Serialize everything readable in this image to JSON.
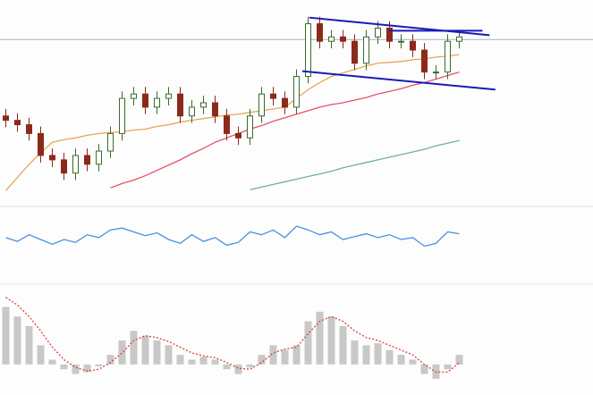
{
  "chart_data": [
    {
      "type": "candlestick",
      "x": [
        0,
        1,
        2,
        3,
        4,
        5,
        6,
        7,
        8,
        9,
        10,
        11,
        12,
        13,
        14,
        15,
        16,
        17,
        18,
        19,
        20,
        21,
        22,
        23,
        24,
        25,
        26,
        27,
        28,
        29,
        30,
        31,
        32,
        33,
        34,
        35,
        36,
        37,
        38,
        39
      ],
      "open": [
        100,
        95,
        90,
        80,
        55,
        50,
        35,
        55,
        45,
        60,
        80,
        120,
        125,
        110,
        120,
        125,
        100,
        110,
        115,
        100,
        80,
        75,
        100,
        125,
        120,
        110,
        145,
        205,
        185,
        190,
        185,
        160,
        190,
        200,
        185,
        185,
        175,
        150,
        150,
        185
      ],
      "high": [
        108,
        103,
        98,
        88,
        63,
        58,
        63,
        63,
        68,
        88,
        128,
        133,
        133,
        128,
        133,
        133,
        118,
        123,
        123,
        108,
        88,
        108,
        133,
        133,
        128,
        153,
        213,
        213,
        198,
        198,
        193,
        198,
        208,
        208,
        193,
        193,
        183,
        158,
        193,
        198
      ],
      "low": [
        87,
        82,
        72,
        47,
        42,
        27,
        27,
        37,
        37,
        52,
        72,
        112,
        102,
        102,
        112,
        92,
        92,
        102,
        92,
        72,
        67,
        67,
        92,
        112,
        102,
        102,
        137,
        177,
        177,
        177,
        152,
        152,
        182,
        177,
        177,
        167,
        142,
        142,
        142,
        177
      ],
      "close": [
        95,
        90,
        80,
        55,
        50,
        35,
        55,
        45,
        60,
        80,
        120,
        125,
        110,
        120,
        125,
        100,
        110,
        115,
        100,
        80,
        75,
        100,
        125,
        120,
        110,
        145,
        205,
        185,
        190,
        185,
        160,
        190,
        200,
        185,
        185,
        175,
        150,
        150,
        185,
        190
      ],
      "up_color": "#3a6b2a",
      "down_color": "#8b2a1a",
      "series": [
        {
          "color": "#e8a657",
          "values": [
            15,
            30,
            45,
            58,
            70,
            73,
            75,
            78,
            80,
            81,
            82,
            84,
            85,
            88,
            90,
            93,
            95,
            97,
            99,
            101,
            102,
            104,
            106,
            108,
            110,
            120,
            130,
            138,
            145,
            149,
            153,
            157,
            160,
            161,
            162,
            164,
            165,
            167,
            168,
            170
          ]
        },
        {
          "color": "#e8506a",
          "values": [
            null,
            null,
            null,
            null,
            null,
            null,
            null,
            null,
            null,
            18,
            23,
            27,
            32,
            38,
            44,
            50,
            57,
            63,
            70,
            75,
            80,
            85,
            89,
            94,
            98,
            102,
            106,
            110,
            113,
            115,
            118,
            121,
            125,
            128,
            131,
            135,
            138,
            142,
            146,
            150
          ]
        },
        {
          "color": "#6fb0a0",
          "values": [
            null,
            null,
            null,
            null,
            null,
            null,
            null,
            null,
            null,
            null,
            null,
            null,
            null,
            null,
            null,
            null,
            null,
            null,
            null,
            null,
            null,
            16,
            19,
            22,
            25,
            28,
            31,
            34,
            37,
            41,
            44,
            47,
            50,
            53,
            56,
            59,
            62,
            66,
            69,
            72
          ]
        }
      ],
      "hline": 187,
      "hline_color": "#a8b0c0",
      "trendlines": [
        {
          "x": [
            26.1,
            41.6
          ],
          "values": [
            212,
            192
          ],
          "color": "#1a1ab8"
        },
        {
          "x": [
            25.5,
            42.1
          ],
          "values": [
            151,
            130
          ],
          "color": "#1a1ab8"
        },
        {
          "x": [
            33,
            41
          ],
          "values": [
            197,
            197
          ],
          "color": "#1a1ab8"
        }
      ],
      "xlim": [
        -0.5,
        50.5
      ],
      "ylim": [
        0,
        230
      ]
    },
    {
      "type": "line",
      "x": [
        0,
        1,
        2,
        3,
        4,
        5,
        6,
        7,
        8,
        9,
        10,
        11,
        12,
        13,
        14,
        15,
        16,
        17,
        18,
        19,
        20,
        21,
        22,
        23,
        24,
        25,
        26,
        27,
        28,
        29,
        30,
        31,
        32,
        33,
        34,
        35,
        36,
        37,
        38,
        39
      ],
      "series": [
        {
          "color": "#4a90e2",
          "values": [
            52,
            48,
            55,
            50,
            45,
            50,
            47,
            55,
            52,
            60,
            62,
            58,
            54,
            57,
            50,
            46,
            55,
            48,
            52,
            44,
            47,
            58,
            55,
            60,
            52,
            64,
            60,
            55,
            58,
            50,
            53,
            56,
            52,
            55,
            50,
            52,
            43,
            46,
            58,
            56
          ]
        }
      ],
      "xlim": [
        -0.5,
        50.5
      ],
      "ylim": [
        20,
        80
      ]
    },
    {
      "type": "bar",
      "x": [
        0,
        1,
        2,
        3,
        4,
        5,
        6,
        7,
        8,
        9,
        10,
        11,
        12,
        13,
        14,
        15,
        16,
        17,
        18,
        19,
        20,
        21,
        22,
        23,
        24,
        25,
        26,
        27,
        28,
        29,
        30,
        31,
        32,
        33,
        34,
        35,
        36,
        37,
        38,
        39
      ],
      "values": [
        60,
        50,
        40,
        20,
        5,
        -5,
        -10,
        -8,
        -2,
        10,
        25,
        35,
        30,
        25,
        20,
        10,
        5,
        8,
        5,
        -5,
        -10,
        -3,
        10,
        20,
        15,
        20,
        45,
        55,
        50,
        40,
        25,
        20,
        22,
        15,
        10,
        5,
        -10,
        -15,
        -5,
        10
      ],
      "color": "#c8c8c8",
      "series": [
        {
          "color": "#d9413a",
          "values": [
            70,
            62,
            50,
            35,
            18,
            5,
            -3,
            -7,
            -5,
            2,
            12,
            25,
            30,
            28,
            24,
            18,
            12,
            9,
            7,
            2,
            -4,
            -5,
            2,
            12,
            16,
            18,
            32,
            45,
            50,
            45,
            35,
            28,
            25,
            20,
            15,
            10,
            0,
            -8,
            -8,
            2
          ]
        }
      ],
      "xlim": [
        -0.5,
        50.5
      ],
      "ylim": [
        -30,
        80
      ]
    }
  ]
}
